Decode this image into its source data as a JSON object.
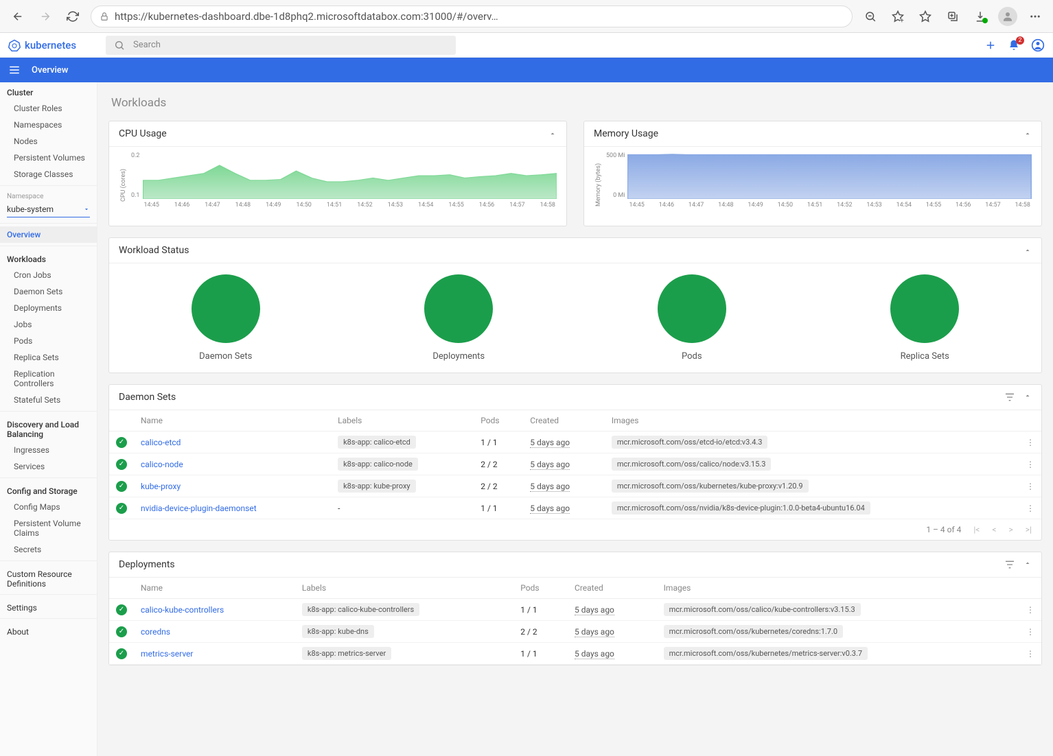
{
  "browser": {
    "url": "https://kubernetes-dashboard.dbe-1d8phq2.microsoftdatabox.com:31000/#/overv…"
  },
  "appbar": {
    "brand": "kubernetes",
    "search_placeholder": "Search",
    "notification_count": "2"
  },
  "titlebar": {
    "title": "Overview"
  },
  "sidebar": {
    "cluster_label": "Cluster",
    "cluster_items": [
      "Cluster Roles",
      "Namespaces",
      "Nodes",
      "Persistent Volumes",
      "Storage Classes"
    ],
    "namespace_label": "Namespace",
    "namespace_value": "kube-system",
    "overview": "Overview",
    "workloads_label": "Workloads",
    "workloads_items": [
      "Cron Jobs",
      "Daemon Sets",
      "Deployments",
      "Jobs",
      "Pods",
      "Replica Sets",
      "Replication Controllers",
      "Stateful Sets"
    ],
    "discovery_label": "Discovery and Load Balancing",
    "discovery_items": [
      "Ingresses",
      "Services"
    ],
    "config_label": "Config and Storage",
    "config_items": [
      "Config Maps",
      "Persistent Volume Claims",
      "Secrets"
    ],
    "crd": "Custom Resource Definitions",
    "settings": "Settings",
    "about": "About"
  },
  "page": {
    "title": "Workloads"
  },
  "charts": {
    "cpu": {
      "title": "CPU Usage",
      "y_label": "CPU (cores)",
      "y_ticks": [
        "0.2",
        "0.1"
      ],
      "x_ticks": [
        "14:45",
        "14:46",
        "14:47",
        "14:48",
        "14:49",
        "14:50",
        "14:51",
        "14:52",
        "14:53",
        "14:54",
        "14:55",
        "14:56",
        "14:57",
        "14:58"
      ],
      "fill_color": "#7ed895",
      "fill_color_light": "#bce8c8",
      "path_norm": [
        0.6,
        0.6,
        0.55,
        0.5,
        0.45,
        0.28,
        0.45,
        0.6,
        0.6,
        0.58,
        0.4,
        0.55,
        0.63,
        0.63,
        0.6,
        0.55,
        0.6,
        0.55,
        0.5,
        0.5,
        0.48,
        0.55,
        0.52,
        0.5,
        0.45,
        0.5,
        0.48,
        0.45
      ]
    },
    "memory": {
      "title": "Memory Usage",
      "y_label": "Memory (bytes)",
      "y_ticks": [
        "500 Mi",
        "0 Mi"
      ],
      "x_ticks": [
        "14:45",
        "14:46",
        "14:47",
        "14:48",
        "14:49",
        "14:50",
        "14:51",
        "14:52",
        "14:53",
        "14:54",
        "14:55",
        "14:56",
        "14:57",
        "14:58"
      ],
      "fill_color": "#8aa9e4",
      "fill_color_light": "#c2d2f1",
      "path_norm": [
        0.05,
        0.05,
        0.05,
        0.04,
        0.05,
        0.05,
        0.05,
        0.05,
        0.05,
        0.05,
        0.05,
        0.05,
        0.05,
        0.05,
        0.05,
        0.05,
        0.05,
        0.05,
        0.05,
        0.05,
        0.05,
        0.05,
        0.05,
        0.05,
        0.05,
        0.05,
        0.05,
        0.05
      ]
    }
  },
  "workload_status": {
    "title": "Workload Status",
    "color": "#1b9e4b",
    "items": [
      "Daemon Sets",
      "Deployments",
      "Pods",
      "Replica Sets"
    ]
  },
  "daemon_sets": {
    "title": "Daemon Sets",
    "columns": [
      "Name",
      "Labels",
      "Pods",
      "Created",
      "Images"
    ],
    "rows": [
      {
        "name": "calico-etcd",
        "label": "k8s-app: calico-etcd",
        "pods": "1 / 1",
        "created": "5 days ago",
        "image": "mcr.microsoft.com/oss/etcd-io/etcd:v3.4.3"
      },
      {
        "name": "calico-node",
        "label": "k8s-app: calico-node",
        "pods": "2 / 2",
        "created": "5 days ago",
        "image": "mcr.microsoft.com/oss/calico/node:v3.15.3"
      },
      {
        "name": "kube-proxy",
        "label": "k8s-app: kube-proxy",
        "pods": "2 / 2",
        "created": "5 days ago",
        "image": "mcr.microsoft.com/oss/kubernetes/kube-proxy:v1.20.9"
      },
      {
        "name": "nvidia-device-plugin-daemonset",
        "label": "-",
        "pods": "1 / 1",
        "created": "5 days ago",
        "image": "mcr.microsoft.com/oss/nvidia/k8s-device-plugin:1.0.0-beta4-ubuntu16.04"
      }
    ],
    "pagination": "1 – 4 of 4"
  },
  "deployments": {
    "title": "Deployments",
    "columns": [
      "Name",
      "Labels",
      "Pods",
      "Created",
      "Images"
    ],
    "rows": [
      {
        "name": "calico-kube-controllers",
        "label": "k8s-app: calico-kube-controllers",
        "pods": "1 / 1",
        "created": "5 days ago",
        "image": "mcr.microsoft.com/oss/calico/kube-controllers:v3.15.3"
      },
      {
        "name": "coredns",
        "label": "k8s-app: kube-dns",
        "pods": "2 / 2",
        "created": "5 days ago",
        "image": "mcr.microsoft.com/oss/kubernetes/coredns:1.7.0"
      },
      {
        "name": "metrics-server",
        "label": "k8s-app: metrics-server",
        "pods": "1 / 1",
        "created": "5 days ago",
        "image": "mcr.microsoft.com/oss/kubernetes/metrics-server:v0.3.7"
      }
    ]
  }
}
